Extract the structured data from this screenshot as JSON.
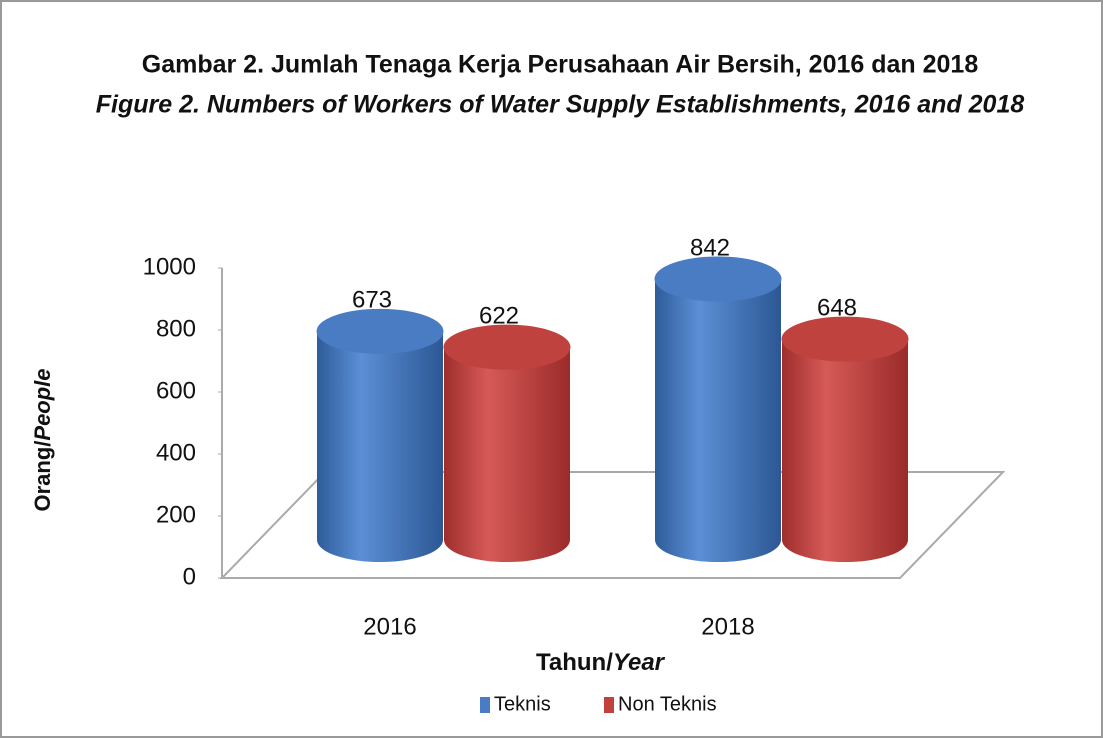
{
  "chart_data": {
    "type": "bar",
    "title": "Gambar 2. Jumlah Tenaga Kerja Perusahaan Air Bersih, 2016 dan 2018",
    "subtitle": "Figure 2. Numbers of Workers of Water Supply Establishments, 2016 and 2018",
    "ylabel": [
      "Orang/",
      "People"
    ],
    "xlabel": [
      "Tahun/",
      "Year"
    ],
    "categories": [
      "2016",
      "2018"
    ],
    "series": [
      {
        "name": "Teknis",
        "color": "#4a7cc4",
        "values": [
          673,
          842
        ]
      },
      {
        "name": "Non Teknis",
        "color": "#c0423f",
        "values": [
          622,
          648
        ]
      }
    ],
    "ylim": [
      0,
      1000
    ],
    "yticks": [
      0,
      200,
      400,
      600,
      800,
      1000
    ]
  }
}
